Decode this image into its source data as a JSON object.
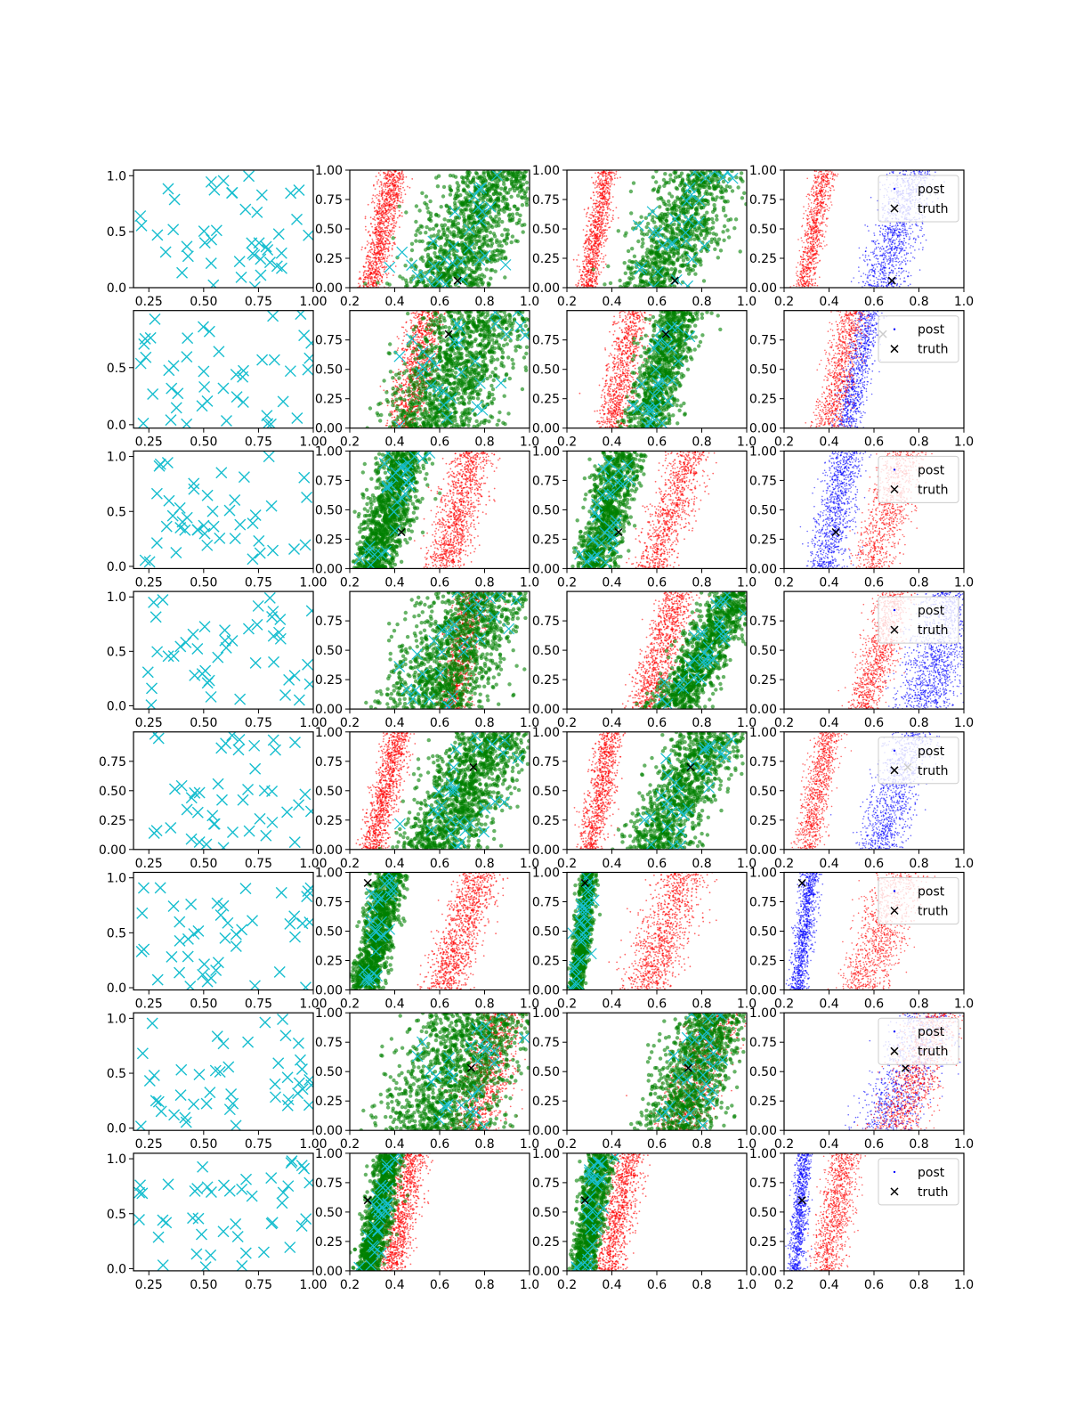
{
  "colors": {
    "samples": "#17becf",
    "post": "#ff0000",
    "prior": "#008000",
    "alt": "#0000ff",
    "truth": "#000000"
  },
  "chart_data": {
    "type": "scatter",
    "layout": "8 rows x 4 columns of scatter panels",
    "legend": {
      "placement": "upper-right",
      "labels": {
        "post": "post",
        "truth": "truth"
      }
    },
    "col0_xticks": [
      "0.25",
      "0.50",
      "0.75",
      "1.00"
    ],
    "col1_3_xticks": [
      "0.2",
      "0.4",
      "0.6",
      "0.8",
      "1.0"
    ],
    "rows": [
      {
        "col0": {
          "yticks": [
            "0.0",
            "0.5",
            "1.0"
          ],
          "ylim": [
            0.0,
            1.05
          ]
        },
        "yticks": [
          "0.00",
          "0.25",
          "0.50",
          "0.75",
          "1.00"
        ],
        "truth": [
          0.68,
          0.06
        ],
        "red": {
          "x0": 0.29,
          "x1": 0.4,
          "slope": 0.45,
          "spread": 0.05,
          "n": 1100
        },
        "blue": {
          "x0": 0.63,
          "x1": 0.78,
          "slope": 0.4,
          "spread": 0.09,
          "n": 1100
        },
        "green": {
          "x0": 0.62,
          "x1": 0.85,
          "slope": 0.5,
          "spread": 0.18,
          "n": 1100
        },
        "green3": {
          "x0": 0.58,
          "x1": 0.82,
          "slope": 0.55,
          "spread": 0.16,
          "n": 900
        },
        "red3": {
          "x0": 0.29,
          "x1": 0.38,
          "slope": 0.4,
          "spread": 0.04,
          "n": 900
        }
      },
      {
        "col0": {
          "yticks": [
            "0.0",
            "0.5"
          ],
          "ylim": [
            -0.03,
            1.0
          ]
        },
        "yticks": [
          "0.00",
          "0.25",
          "0.50",
          "0.75"
        ],
        "truth": [
          0.64,
          0.8
        ],
        "red": {
          "x0": 0.44,
          "x1": 0.55,
          "slope": 0.4,
          "spread": 0.07,
          "n": 1100
        },
        "blue": {
          "x0": 0.48,
          "x1": 0.58,
          "slope": 0.35,
          "spread": 0.05,
          "n": 900
        },
        "green": {
          "x0": 0.55,
          "x1": 0.8,
          "slope": 0.5,
          "spread": 0.2,
          "n": 1200
        },
        "green3": {
          "x0": 0.55,
          "x1": 0.7,
          "slope": 0.5,
          "spread": 0.09,
          "n": 900
        },
        "red3": {
          "x0": 0.4,
          "x1": 0.5,
          "slope": 0.45,
          "spread": 0.06,
          "n": 900
        }
      },
      {
        "col0": {
          "yticks": [
            "0.0",
            "0.5",
            "1.0"
          ],
          "ylim": [
            -0.02,
            1.05
          ]
        },
        "yticks": [
          "0.00",
          "0.25",
          "0.50",
          "0.75",
          "1.00"
        ],
        "truth": [
          0.43,
          0.31
        ],
        "red": {
          "x0": 0.62,
          "x1": 0.75,
          "slope": 0.5,
          "spread": 0.08,
          "n": 1100
        },
        "blue": {
          "x0": 0.38,
          "x1": 0.48,
          "slope": 0.5,
          "spread": 0.07,
          "n": 1000
        },
        "green": {
          "x0": 0.3,
          "x1": 0.45,
          "slope": 0.6,
          "spread": 0.09,
          "n": 1100
        },
        "green3": {
          "x0": 0.32,
          "x1": 0.45,
          "slope": 0.6,
          "spread": 0.08,
          "n": 900
        },
        "red3": {
          "x0": 0.58,
          "x1": 0.75,
          "slope": 0.55,
          "spread": 0.08,
          "n": 900
        }
      },
      {
        "col0": {
          "yticks": [
            "0.0",
            "0.5",
            "1.0"
          ],
          "ylim": [
            -0.03,
            1.05
          ]
        },
        "yticks": [
          "0.00",
          "0.25",
          "0.50",
          "0.75"
        ],
        "truth": null,
        "red": {
          "x0": 0.65,
          "x1": 0.75,
          "slope": 0.45,
          "spread": 0.06,
          "n": 1100
        },
        "blue": {
          "x0": 0.82,
          "x1": 0.95,
          "slope": 0.3,
          "spread": 0.12,
          "n": 1300
        },
        "green": {
          "x0": 0.55,
          "x1": 0.8,
          "slope": 0.5,
          "spread": 0.2,
          "n": 1200
        },
        "green3": {
          "x0": 0.68,
          "x1": 0.95,
          "slope": 0.55,
          "spread": 0.1,
          "n": 1100
        },
        "red3": {
          "x0": 0.55,
          "x1": 0.7,
          "slope": 0.5,
          "spread": 0.07,
          "n": 1000
        }
      },
      {
        "col0": {
          "yticks": [
            "0.00",
            "0.25",
            "0.50",
            "0.75"
          ],
          "ylim": [
            0.0,
            1.0
          ]
        },
        "yticks": [
          "0.00",
          "0.25",
          "0.50",
          "0.75",
          "1.00"
        ],
        "truth": [
          0.75,
          0.7
        ],
        "red": {
          "x0": 0.3,
          "x1": 0.42,
          "slope": 0.5,
          "spread": 0.05,
          "n": 1100
        },
        "blue": {
          "x0": 0.62,
          "x1": 0.78,
          "slope": 0.45,
          "spread": 0.09,
          "n": 1000
        },
        "green": {
          "x0": 0.58,
          "x1": 0.85,
          "slope": 0.5,
          "spread": 0.16,
          "n": 1200
        },
        "green3": {
          "x0": 0.58,
          "x1": 0.85,
          "slope": 0.55,
          "spread": 0.13,
          "n": 1000
        },
        "red3": {
          "x0": 0.3,
          "x1": 0.4,
          "slope": 0.5,
          "spread": 0.05,
          "n": 900
        }
      },
      {
        "col0": {
          "yticks": [
            "0.0",
            "0.5",
            "1.0"
          ],
          "ylim": [
            -0.02,
            1.05
          ]
        },
        "yticks": [
          "0.00",
          "0.25",
          "0.50",
          "0.75",
          "1.00"
        ],
        "truth": [
          0.28,
          0.91
        ],
        "red": {
          "x0": 0.62,
          "x1": 0.78,
          "slope": 0.55,
          "spread": 0.08,
          "n": 1100
        },
        "blue": {
          "x0": 0.26,
          "x1": 0.32,
          "slope": 0.35,
          "spread": 0.035,
          "n": 1000
        },
        "green": {
          "x0": 0.27,
          "x1": 0.38,
          "slope": 0.4,
          "spread": 0.06,
          "n": 1100
        },
        "green3": {
          "x0": 0.24,
          "x1": 0.3,
          "slope": 0.35,
          "spread": 0.03,
          "n": 900
        },
        "red3": {
          "x0": 0.55,
          "x1": 0.72,
          "slope": 0.55,
          "spread": 0.1,
          "n": 1000
        }
      },
      {
        "col0": {
          "yticks": [
            "0.0",
            "0.5",
            "1.0"
          ],
          "ylim": [
            -0.02,
            1.05
          ]
        },
        "yticks": [
          "0.00",
          "0.25",
          "0.50",
          "0.75",
          "1.00"
        ],
        "truth": [
          0.74,
          0.53
        ],
        "red": {
          "x0": 0.75,
          "x1": 0.88,
          "slope": 0.5,
          "spread": 0.09,
          "n": 1100
        },
        "blue": {
          "x0": 0.65,
          "x1": 0.85,
          "slope": 0.5,
          "spread": 0.12,
          "n": 900
        },
        "green": {
          "x0": 0.55,
          "x1": 0.8,
          "slope": 0.4,
          "spread": 0.22,
          "n": 1200
        },
        "green3": {
          "x0": 0.68,
          "x1": 0.86,
          "slope": 0.45,
          "spread": 0.14,
          "n": 1000
        },
        "red3": {
          "x0": 0.7,
          "x1": 0.88,
          "slope": 0.45,
          "spread": 0.1,
          "n": 1000
        }
      },
      {
        "col0": {
          "yticks": [
            "0.0",
            "0.5",
            "1.0"
          ],
          "ylim": [
            -0.02,
            1.05
          ]
        },
        "yticks": [
          "0.00",
          "0.25",
          "0.50",
          "0.75",
          "1.00"
        ],
        "truth": [
          0.28,
          0.6
        ],
        "red": {
          "x0": 0.38,
          "x1": 0.48,
          "slope": 0.5,
          "spread": 0.06,
          "n": 1100
        },
        "blue": {
          "x0": 0.25,
          "x1": 0.29,
          "slope": 0.25,
          "spread": 0.03,
          "n": 900
        },
        "green": {
          "x0": 0.28,
          "x1": 0.38,
          "slope": 0.45,
          "spread": 0.05,
          "n": 1100
        },
        "green3": {
          "x0": 0.27,
          "x1": 0.35,
          "slope": 0.45,
          "spread": 0.05,
          "n": 900
        },
        "red3": {
          "x0": 0.38,
          "x1": 0.48,
          "slope": 0.5,
          "spread": 0.06,
          "n": 1000
        }
      }
    ]
  }
}
